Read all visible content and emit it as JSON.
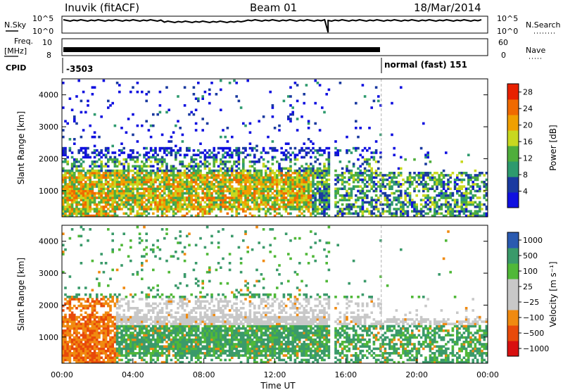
{
  "header": {
    "station": "Inuvik (fitACF)",
    "beam": "Beam 01",
    "date": "18/Mar/2014"
  },
  "top_panels": {
    "nsky_label": "N.Sky",
    "nsky_ticks": [
      "10^5",
      "10^0"
    ],
    "nsearch_label": "N.Search",
    "nsearch_ticks": [
      "10^5",
      "10^0"
    ],
    "freq_label_1": "Freq.",
    "freq_label_2": "[MHz]",
    "freq_ticks": [
      "10",
      "8"
    ],
    "nave_label": "Nave",
    "nave_ticks": [
      "60",
      "0"
    ],
    "cpid_label": "CPID",
    "cpid_value_1": "-3503",
    "cpid_value_2": "normal (fast) 151"
  },
  "colors": {
    "power_scale": [
      "#1010e0",
      "#1a3aa0",
      "#2e9a6e",
      "#4fae3c",
      "#c8d820",
      "#f0a000",
      "#f06a00",
      "#e82000"
    ],
    "velocity_scale": [
      "#d81010",
      "#e84a0a",
      "#f08a10",
      "#c8c8c8",
      "#c8c8c8",
      "#50b838",
      "#3a9a6a",
      "#2a5ab0"
    ]
  },
  "chart_data": [
    {
      "type": "heatmap",
      "name": "power",
      "xlabel": "",
      "ylabel": "Slant Range [km]",
      "xlim": [
        "00:00",
        "24:00"
      ],
      "ylim": [
        180,
        4500
      ],
      "yticks": [
        "4000",
        "3000",
        "2000",
        "1000"
      ],
      "colorbar_label": "Power [dB]",
      "colorbar_ticks": [
        "28",
        "24",
        "20",
        "16",
        "12",
        "8",
        "4"
      ],
      "colorbar_range": [
        0,
        30
      ]
    },
    {
      "type": "heatmap",
      "name": "velocity",
      "xlabel": "Time UT",
      "ylabel": "Slant Range [km]",
      "xlim": [
        "00:00",
        "24:00"
      ],
      "ylim": [
        180,
        4500
      ],
      "xticks": [
        "00:00",
        "04:00",
        "08:00",
        "12:00",
        "16:00",
        "20:00",
        "00:00"
      ],
      "yticks": [
        "4000",
        "3000",
        "2000",
        "1000"
      ],
      "colorbar_label": "Velocity [m s⁻¹]",
      "colorbar_ticks": [
        "1000",
        "500",
        "100",
        "25",
        "−25",
        "−100",
        "−500",
        "−1000"
      ]
    }
  ]
}
